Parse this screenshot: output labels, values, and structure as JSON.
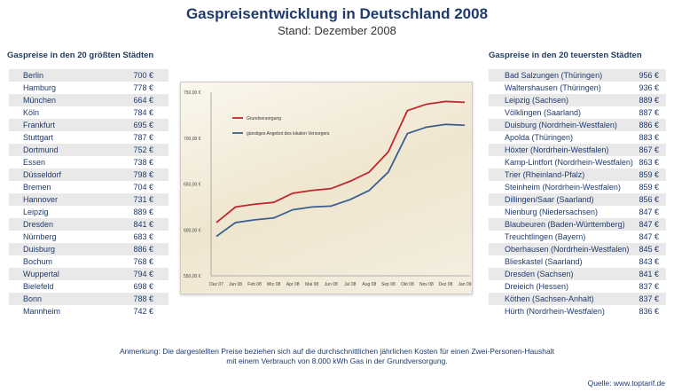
{
  "title": "Gaspreisentwicklung in Deutschland 2008",
  "subtitle": "Stand: Dezember 2008",
  "left_table": {
    "heading": "Gaspreise in den 20 größten Städten",
    "rows": [
      [
        "Berlin",
        "700 €"
      ],
      [
        "Hamburg",
        "778 €"
      ],
      [
        "München",
        "664 €"
      ],
      [
        "Köln",
        "784 €"
      ],
      [
        "Frankfurt",
        "695 €"
      ],
      [
        "Stuttgart",
        "787 €"
      ],
      [
        "Dortmund",
        "752 €"
      ],
      [
        "Essen",
        "738 €"
      ],
      [
        "Düsseldorf",
        "798 €"
      ],
      [
        "Bremen",
        "704 €"
      ],
      [
        "Hannover",
        "731 €"
      ],
      [
        "Leipzig",
        "889 €"
      ],
      [
        "Dresden",
        "841 €"
      ],
      [
        "Nürnberg",
        "683 €"
      ],
      [
        "Duisburg",
        "886 €"
      ],
      [
        "Bochum",
        "768 €"
      ],
      [
        "Wuppertal",
        "794 €"
      ],
      [
        "Bielefeld",
        "698 €"
      ],
      [
        "Bonn",
        "788 €"
      ],
      [
        "Mannheim",
        "742 €"
      ]
    ]
  },
  "right_table": {
    "heading": "Gaspreise in den 20 teuersten Städten",
    "rows": [
      [
        "Bad Salzungen (Thüringen)",
        "956 €"
      ],
      [
        "Waltershausen (Thüringen)",
        "936 €"
      ],
      [
        "Leipzig (Sachsen)",
        "889 €"
      ],
      [
        "Völklingen (Saarland)",
        "887 €"
      ],
      [
        "Duisburg (Nordrhein-Westfalen)",
        "886 €"
      ],
      [
        "Apolda (Thüringen)",
        "883 €"
      ],
      [
        "Höxter (Nordrhein-Westfalen)",
        "867 €"
      ],
      [
        "Kamp-Lintfort (Nordrhein-Westfalen)",
        "863 €"
      ],
      [
        "Trier (Rheinland-Pfalz)",
        "859 €"
      ],
      [
        "Steinheim (Nordrhein-Westfalen)",
        "859 €"
      ],
      [
        "Dillingen/Saar (Saarland)",
        "856 €"
      ],
      [
        "Nienburg (Niedersachsen)",
        "847 €"
      ],
      [
        "Blaubeuren (Baden-Württemberg)",
        "847 €"
      ],
      [
        "Treuchtlingen (Bayern)",
        "847 €"
      ],
      [
        "Oberhausen (Nordrhein-Westfalen)",
        "845 €"
      ],
      [
        "Blieskastel (Saarland)",
        "843 €"
      ],
      [
        "Dresden (Sachsen)",
        "841 €"
      ],
      [
        "Dreieich (Hessen)",
        "837 €"
      ],
      [
        "Köthen (Sachsen-Anhalt)",
        "837 €"
      ],
      [
        "Hürth (Nordrhein-Westfalen)",
        "836 €"
      ]
    ]
  },
  "chart_data": {
    "type": "line",
    "categories": [
      "Dez 07",
      "Jan 08",
      "Feb 08",
      "Mrz 08",
      "Apr 08",
      "Mai 08",
      "Jun 08",
      "Jul 08",
      "Aug 08",
      "Sep 08",
      "Okt 08",
      "Nov 08",
      "Dez 08",
      "Jan 09"
    ],
    "ylim": [
      550,
      750
    ],
    "yticks": [
      "550,00 €",
      "600,00 €",
      "650,00 €",
      "700,00 €",
      "750,00 €"
    ],
    "yticks_values": [
      550,
      600,
      650,
      700,
      750
    ],
    "legend_position": "top-left",
    "grid": false,
    "series": [
      {
        "name": "Grundversorgung",
        "color": "#c0272d",
        "values": [
          608,
          625,
          628,
          630,
          640,
          643,
          645,
          653,
          663,
          685,
          730,
          737,
          740,
          739
        ]
      },
      {
        "name": "günstiges Angebot des lokalen Versorgers",
        "color": "#3a5f8f",
        "values": [
          593,
          608,
          611,
          613,
          622,
          625,
          626,
          633,
          643,
          663,
          705,
          712,
          715,
          714
        ]
      }
    ]
  },
  "note": {
    "line1": "Anmerkung: Die dargestellten Preise beziehen sich auf die durchschnittlichen jährlichen Kosten für einen Zwei-Personen-Haushalt",
    "line2": "mit einem Verbrauch von 8.000 kWh Gas in der Grundversorgung."
  },
  "source": "Quelle: www.toptarif.de"
}
